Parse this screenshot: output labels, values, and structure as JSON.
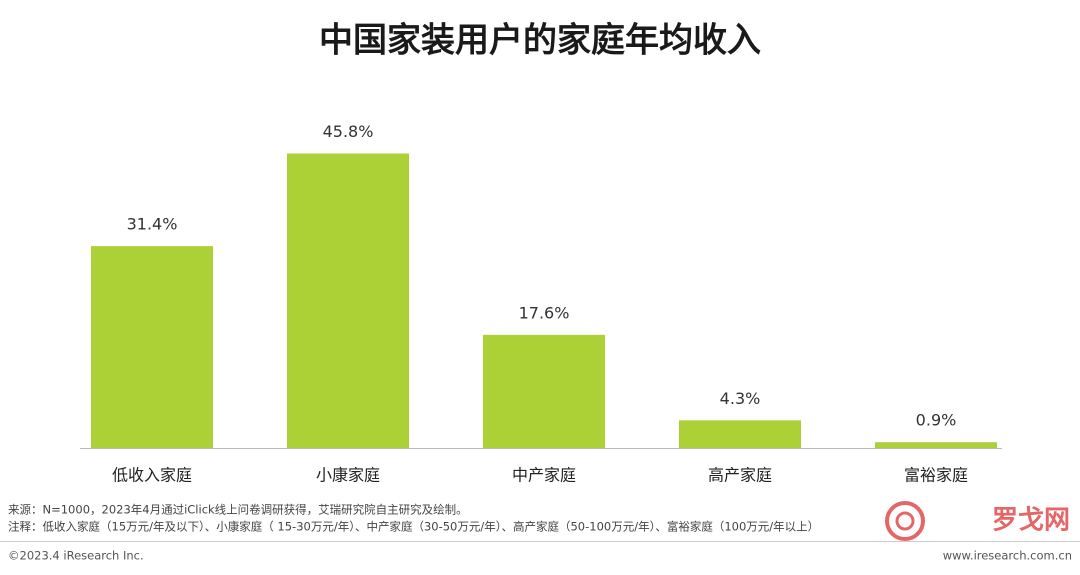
{
  "chart_data": {
    "type": "bar",
    "title": "中国家装用户的家庭年均收入",
    "categories": [
      "低收入家庭",
      "小康家庭",
      "中产家庭",
      "高产家庭",
      "富裕家庭"
    ],
    "values": [
      31.4,
      45.8,
      17.6,
      4.3,
      0.9
    ],
    "value_labels": [
      "31.4%",
      "45.8%",
      "17.6%",
      "4.3%",
      "0.9%"
    ],
    "color": "#acd136",
    "source": "来源：N=1000，2023年4月通过iClick线上问卷调研获得，艾瑞研究院自主研究及绘制。",
    "note": "注释：低收入家庭（15万元/年及以下）、小康家庭（ 15-30万元/年）、中产家庭（30-50万元/年）、高产家庭（50-100万元/年）、富裕家庭（100万元/年以上）",
    "copyright": "©2023.4 iResearch Inc.",
    "website": "www.iresearch.com.cn",
    "watermark": "罗戈网"
  }
}
